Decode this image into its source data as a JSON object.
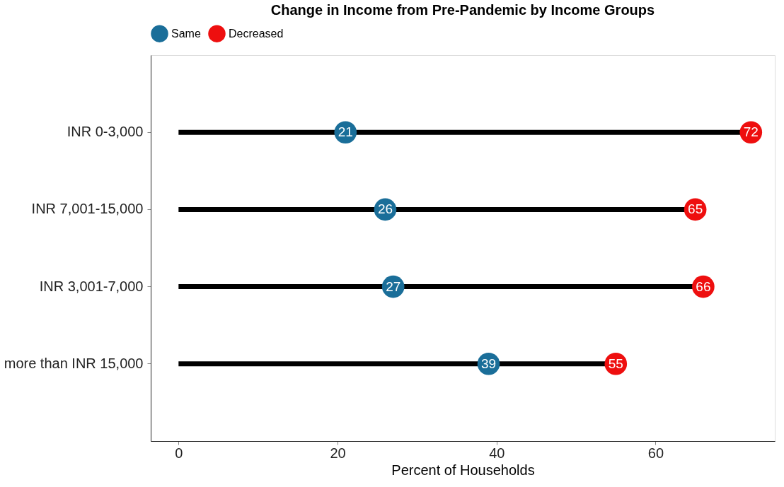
{
  "chart_data": {
    "type": "lollipop",
    "title": "Change in Income from Pre-Pandemic by Income Groups",
    "xlabel": "Percent of Households",
    "orientation": "horizontal",
    "categories": [
      "INR 0-3,000",
      "INR 7,001-15,000",
      "INR 3,001-7,000",
      "more than INR 15,000"
    ],
    "series": [
      {
        "name": "Same",
        "color": "#1a6e99",
        "values": [
          21,
          26,
          27,
          39
        ]
      },
      {
        "name": "Decreased",
        "color": "#ee0f0f",
        "values": [
          72,
          65,
          66,
          55
        ]
      }
    ],
    "xlim": [
      -3.5,
      75
    ],
    "xticks": [
      0,
      20,
      40,
      60
    ],
    "data_labels": true,
    "legend": "top",
    "grid": false
  }
}
